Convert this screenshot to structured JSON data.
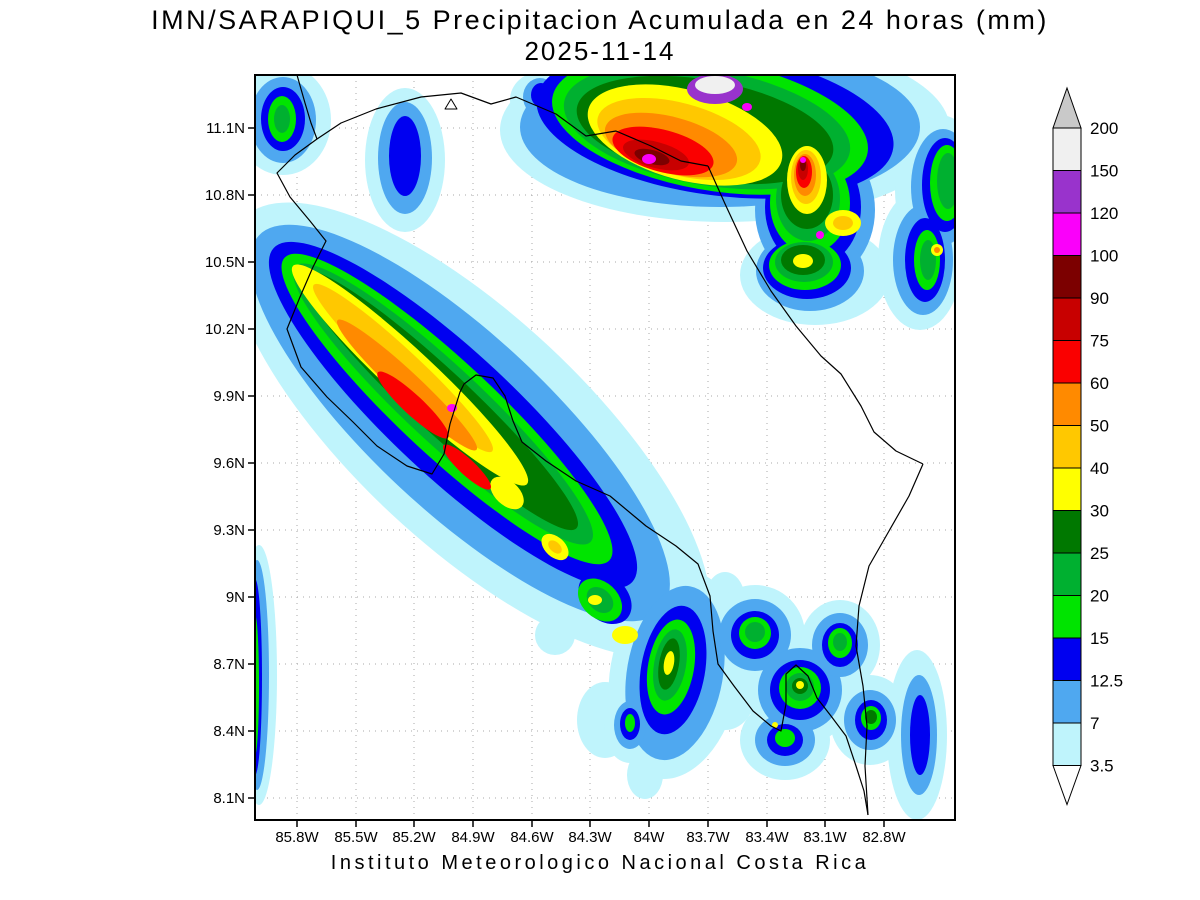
{
  "title": {
    "line1": "IMN/SARAPIQUI_5 Precipitacion Acumulada en 24 horas (mm)",
    "line2": "2025-11-14"
  },
  "footer": "Instituto Meteorologico Nacional Costa Rica",
  "axes": {
    "y_labels": [
      "11.1N",
      "10.8N",
      "10.5N",
      "10.2N",
      "9.9N",
      "9.6N",
      "9.3N",
      "9N",
      "8.7N",
      "8.4N",
      "8.1N"
    ],
    "x_labels": [
      "85.8W",
      "85.5W",
      "85.2W",
      "84.9W",
      "84.6W",
      "84.3W",
      "84W",
      "83.7W",
      "83.4W",
      "83.1W",
      "82.8W"
    ]
  },
  "colorbar": {
    "tick_labels": [
      "200",
      "150",
      "120",
      "100",
      "90",
      "75",
      "60",
      "50",
      "40",
      "30",
      "25",
      "20",
      "15",
      "12.5",
      "7",
      "3.5"
    ],
    "segment_colors": [
      "#F0F0F0",
      "#9933CC",
      "#FA00FA",
      "#7C0000",
      "#C80000",
      "#FA0000",
      "#FF8A00",
      "#FFC800",
      "#FFFF00",
      "#007800",
      "#00B030",
      "#00E400",
      "#0000F0",
      "#4FA8F0",
      "#BFF4FC"
    ],
    "top_arrow_color": "#C9C9C9",
    "bottom_arrow_color": "#FFFFFF",
    "outline_color": "#000000"
  },
  "map": {
    "levels": {
      "3.5": "#BFF4FC",
      "7": "#4FA8F0",
      "12.5": "#0000F0",
      "15": "#00E400",
      "20": "#00B030",
      "25": "#007800",
      "30": "#FFFF00",
      "40": "#FFC800",
      "50": "#FF8A00",
      "60": "#FA0000",
      "75": "#C80000",
      "90": "#7C0000",
      "100": "#FA00FA",
      "120": "#9933CC",
      "150": "#F0F0F0"
    },
    "coastline_color": "#000000",
    "grid_color": "#A8A8A8",
    "background_color": "#FFFFFF"
  },
  "chart_data": {
    "type": "heatmap",
    "title": "IMN/SARAPIQUI_5 Precipitacion Acumulada en 24 horas (mm)",
    "subtitle": "2025-11-14",
    "units": "mm",
    "x_ticks": [
      "85.8W",
      "85.5W",
      "85.2W",
      "84.9W",
      "84.6W",
      "84.3W",
      "84W",
      "83.7W",
      "83.4W",
      "83.1W",
      "82.8W"
    ],
    "y_ticks": [
      "11.1N",
      "10.8N",
      "10.5N",
      "10.2N",
      "9.9N",
      "9.6N",
      "9.3N",
      "9N",
      "8.7N",
      "8.4N",
      "8.1N"
    ],
    "colorbar_levels_mm": [
      3.5,
      7,
      12.5,
      15,
      20,
      25,
      30,
      40,
      50,
      60,
      75,
      90,
      100,
      120,
      150,
      200
    ],
    "legend_position": "right",
    "grid": "dotted",
    "annotation": "Instituto Meteorologico Nacional Costa Rica"
  }
}
